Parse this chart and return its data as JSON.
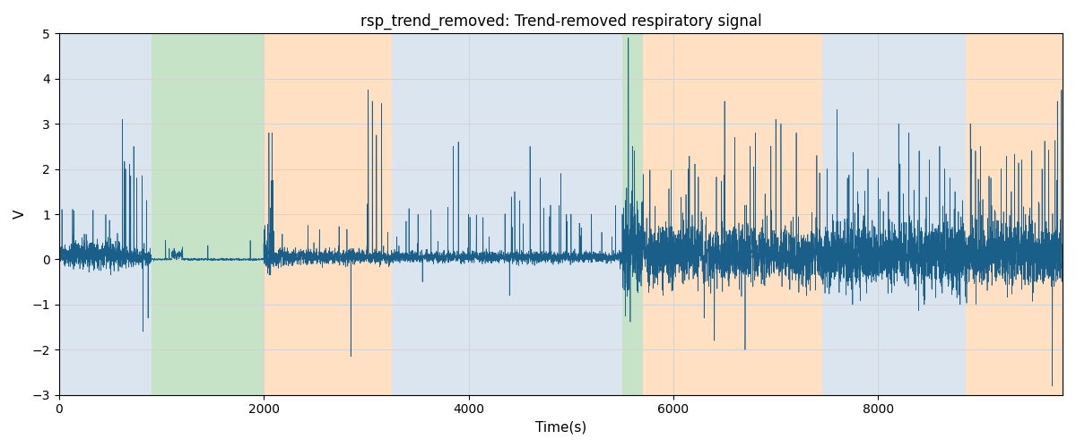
{
  "title": "rsp_trend_removed: Trend-removed respiratory signal",
  "xlabel": "Time(s)",
  "ylabel": "V",
  "ylim": [
    -3,
    5
  ],
  "xlim": [
    0,
    9800
  ],
  "background_color": "#ffffff",
  "line_color": "#1a5f8a",
  "line_width": 0.5,
  "bands": [
    {
      "xmin": 0,
      "xmax": 900,
      "color": "#aec6de",
      "alpha": 0.45
    },
    {
      "xmin": 900,
      "xmax": 2000,
      "color": "#90c890",
      "alpha": 0.5
    },
    {
      "xmin": 2000,
      "xmax": 3250,
      "color": "#ffc890",
      "alpha": 0.55
    },
    {
      "xmin": 3250,
      "xmax": 5500,
      "color": "#aec6de",
      "alpha": 0.45
    },
    {
      "xmin": 5500,
      "xmax": 5700,
      "color": "#90c890",
      "alpha": 0.5
    },
    {
      "xmin": 5700,
      "xmax": 7450,
      "color": "#ffc890",
      "alpha": 0.55
    },
    {
      "xmin": 7450,
      "xmax": 8850,
      "color": "#aec6de",
      "alpha": 0.45
    },
    {
      "xmin": 8850,
      "xmax": 9800,
      "color": "#ffc890",
      "alpha": 0.55
    }
  ],
  "seed": 17,
  "n_points": 9800
}
